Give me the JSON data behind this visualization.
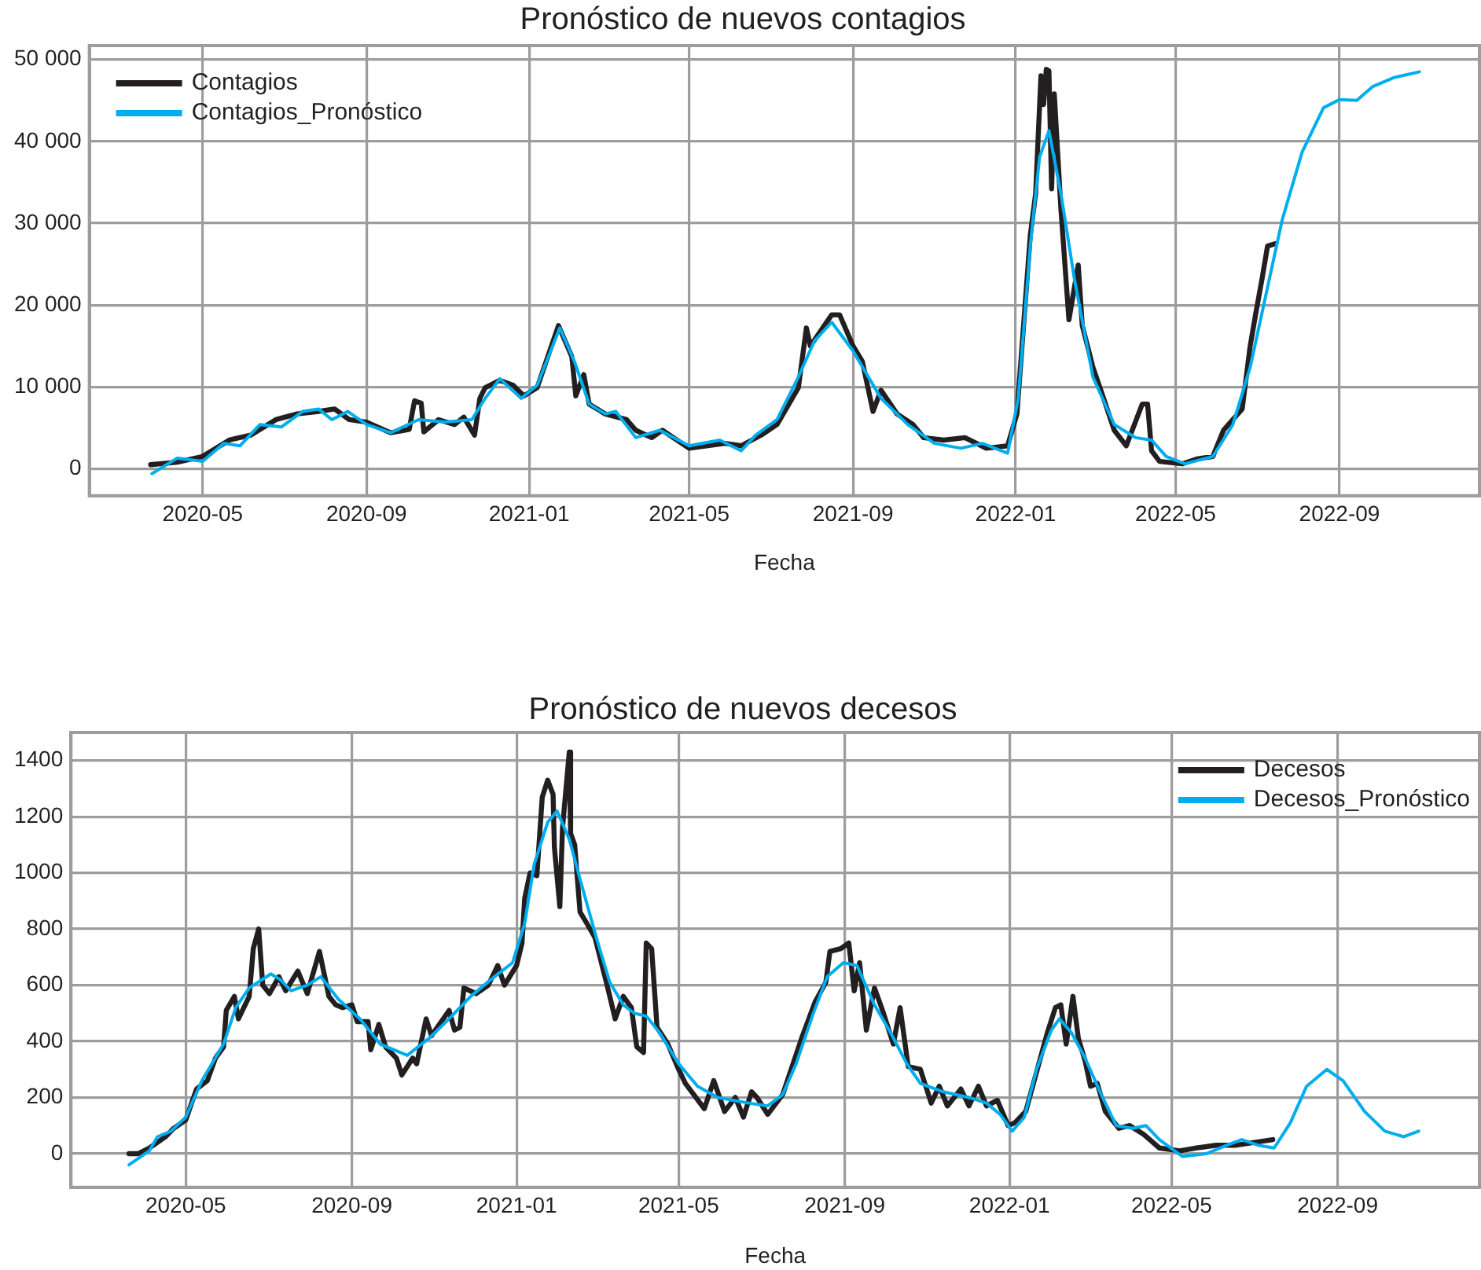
{
  "chart_data": [
    {
      "type": "line",
      "title": "Pronóstico de nuevos contagios",
      "xlabel": "Fecha",
      "xlim": [
        "2020-02-06",
        "2022-12-15"
      ],
      "xticks": [
        "2020-05",
        "2020-09",
        "2021-01",
        "2021-05",
        "2021-09",
        "2022-01",
        "2022-05",
        "2022-09"
      ],
      "ylim": [
        -3300,
        51700
      ],
      "yticks": [
        0,
        {
          "value": 10000,
          "label": "10 000"
        },
        {
          "value": 20000,
          "label": "20 000"
        },
        {
          "value": 30000,
          "label": "30 000"
        },
        {
          "value": 40000,
          "label": "40 000"
        },
        {
          "value": 50000,
          "label": "50 000"
        }
      ],
      "grid": true,
      "legend": "top left",
      "series": [
        {
          "name": "Contagios",
          "color": "#231f20",
          "x": [
            "2020-03-23",
            "2020-04-12",
            "2020-05-01",
            "2020-05-21",
            "2020-06-06",
            "2020-06-25",
            "2020-07-11",
            "2020-07-27",
            "2020-08-08",
            "2020-08-19",
            "2020-09-01",
            "2020-09-19",
            "2020-10-03",
            "2020-10-07",
            "2020-10-12",
            "2020-10-14",
            "2020-10-25",
            "2020-11-06",
            "2020-11-13",
            "2020-11-21",
            "2020-11-25",
            "2020-11-29",
            "2020-12-10",
            "2020-12-20",
            "2020-12-28",
            "2021-01-07",
            "2021-01-23",
            "2021-02-02",
            "2021-02-05",
            "2021-02-11",
            "2021-02-15",
            "2021-02-27",
            "2021-03-15",
            "2021-03-22",
            "2021-04-03",
            "2021-04-11",
            "2021-05-01",
            "2021-05-28",
            "2021-06-09",
            "2021-06-24",
            "2021-07-06",
            "2021-07-22",
            "2021-07-28",
            "2021-07-31",
            "2021-08-16",
            "2021-08-22",
            "2021-09-01",
            "2021-09-08",
            "2021-09-16",
            "2021-09-22",
            "2021-10-04",
            "2021-10-16",
            "2021-10-24",
            "2021-11-08",
            "2021-11-24",
            "2021-12-10",
            "2021-12-26",
            "2022-01-02",
            "2022-01-12",
            "2022-01-16",
            "2022-01-20",
            "2022-01-22",
            "2022-01-24",
            "2022-01-26",
            "2022-01-28",
            "2022-01-30",
            "2022-02-04",
            "2022-02-10",
            "2022-02-17",
            "2022-02-20",
            "2022-02-28",
            "2022-03-08",
            "2022-03-16",
            "2022-03-25",
            "2022-04-06",
            "2022-04-10",
            "2022-04-13",
            "2022-04-19",
            "2022-05-06",
            "2022-05-17",
            "2022-05-29",
            "2022-06-06",
            "2022-06-20",
            "2022-06-26",
            "2022-06-30",
            "2022-07-05",
            "2022-07-09",
            "2022-07-15"
          ],
          "values": [
            500,
            800,
            1500,
            3500,
            4100,
            6000,
            6700,
            7000,
            7300,
            6000,
            5700,
            4400,
            4800,
            8300,
            8000,
            4500,
            6000,
            5400,
            6300,
            4100,
            8600,
            9900,
            10800,
            10200,
            8900,
            9900,
            17500,
            13700,
            8900,
            11500,
            7900,
            6700,
            6000,
            4700,
            3800,
            4700,
            2500,
            3100,
            2800,
            4100,
            5400,
            9900,
            17200,
            15000,
            18800,
            18800,
            15000,
            13100,
            7000,
            9600,
            6700,
            5400,
            3800,
            3500,
            3800,
            2500,
            2800,
            6700,
            28500,
            33600,
            48000,
            44500,
            48800,
            48600,
            34200,
            45800,
            31700,
            18200,
            24900,
            17500,
            12400,
            8600,
            4700,
            2800,
            7900,
            7900,
            2200,
            900,
            600,
            1200,
            1500,
            4700,
            7300,
            15000,
            18800,
            23300,
            27200,
            27500
          ]
        },
        {
          "name": "Contagios_Pronóstico",
          "color": "#00aeef",
          "x": [
            "2020-03-24",
            "2020-04-12",
            "2020-05-01",
            "2020-05-17",
            "2020-05-29",
            "2020-06-13",
            "2020-06-29",
            "2020-07-15",
            "2020-07-27",
            "2020-08-06",
            "2020-08-18",
            "2020-09-01",
            "2020-09-19",
            "2020-10-10",
            "2020-10-30",
            "2020-11-19",
            "2020-11-29",
            "2020-12-10",
            "2020-12-26",
            "2021-01-07",
            "2021-01-24",
            "2021-02-04",
            "2021-02-15",
            "2021-02-27",
            "2021-03-07",
            "2021-03-22",
            "2021-04-09",
            "2021-05-01",
            "2021-05-24",
            "2021-06-09",
            "2021-06-20",
            "2021-07-06",
            "2021-07-22",
            "2021-08-03",
            "2021-08-16",
            "2021-09-01",
            "2021-09-22",
            "2021-10-12",
            "2021-11-01",
            "2021-11-21",
            "2021-12-07",
            "2021-12-26",
            "2022-01-03",
            "2022-01-12",
            "2022-01-19",
            "2022-01-26",
            "2022-02-04",
            "2022-02-14",
            "2022-02-28",
            "2022-03-16",
            "2022-04-01",
            "2022-04-13",
            "2022-04-24",
            "2022-05-08",
            "2022-05-29",
            "2022-06-13",
            "2022-06-26",
            "2022-07-08",
            "2022-07-20",
            "2022-08-04",
            "2022-08-20",
            "2022-09-01",
            "2022-09-14",
            "2022-09-26",
            "2022-10-12",
            "2022-10-31"
          ],
          "values": [
            -600,
            1300,
            900,
            3100,
            2800,
            5400,
            5100,
            7000,
            7300,
            6000,
            7000,
            5400,
            4400,
            6000,
            5700,
            6000,
            8600,
            11000,
            8600,
            10200,
            17200,
            13100,
            7900,
            6700,
            7000,
            3800,
            4700,
            2800,
            3500,
            2200,
            4100,
            6000,
            11200,
            15600,
            17900,
            14400,
            8600,
            5400,
            3100,
            2500,
            3100,
            1900,
            8600,
            27200,
            38100,
            41300,
            33600,
            23300,
            11200,
            5400,
            3800,
            3500,
            1500,
            600,
            1500,
            5400,
            12400,
            21400,
            30400,
            38700,
            44100,
            45100,
            45000,
            46700,
            47800,
            48500
          ]
        }
      ]
    },
    {
      "type": "line",
      "title": "Pronóstico de nuevos decesos",
      "xlabel": "Fecha",
      "xlim": [
        "2020-02-06",
        "2022-12-15"
      ],
      "xticks": [
        "2020-05",
        "2020-09",
        "2021-01",
        "2021-05",
        "2021-09",
        "2022-01",
        "2022-05",
        "2022-09"
      ],
      "ylim": [
        -120,
        1500
      ],
      "yticks": [
        0,
        200,
        400,
        600,
        800,
        1000,
        1200,
        1400
      ],
      "grid": true,
      "legend": "top right",
      "series": [
        {
          "name": "Decesos",
          "color": "#231f20",
          "x": [
            "2020-03-20",
            "2020-03-27",
            "2020-04-04",
            "2020-04-16",
            "2020-04-22",
            "2020-05-01",
            "2020-05-09",
            "2020-05-17",
            "2020-05-23",
            "2020-05-29",
            "2020-05-31",
            "2020-06-06",
            "2020-06-09",
            "2020-06-17",
            "2020-06-20",
            "2020-06-24",
            "2020-06-27",
            "2020-07-02",
            "2020-07-09",
            "2020-07-14",
            "2020-07-23",
            "2020-07-30",
            "2020-08-08",
            "2020-08-15",
            "2020-08-20",
            "2020-08-25",
            "2020-09-01",
            "2020-09-05",
            "2020-09-13",
            "2020-09-15",
            "2020-09-21",
            "2020-09-26",
            "2020-10-04",
            "2020-10-08",
            "2020-10-16",
            "2020-10-19",
            "2020-10-26",
            "2020-10-30",
            "2020-11-12",
            "2020-11-16",
            "2020-11-20",
            "2020-11-23",
            "2020-12-02",
            "2020-12-11",
            "2020-12-18",
            "2020-12-23",
            "2021-01-01",
            "2021-01-05",
            "2021-01-07",
            "2021-01-11",
            "2021-01-16",
            "2021-01-20",
            "2021-01-24",
            "2021-01-28",
            "2021-01-29",
            "2021-02-02",
            "2021-02-04",
            "2021-02-09",
            "2021-02-10",
            "2021-02-13",
            "2021-02-17",
            "2021-02-22",
            "2021-02-28",
            "2021-03-09",
            "2021-03-15",
            "2021-03-21",
            "2021-03-27",
            "2021-03-31",
            "2021-04-05",
            "2021-04-07",
            "2021-04-11",
            "2021-04-15",
            "2021-04-23",
            "2021-05-01",
            "2021-05-06",
            "2021-05-20",
            "2021-05-27",
            "2021-06-04",
            "2021-06-12",
            "2021-06-18",
            "2021-06-24",
            "2021-06-28",
            "2021-07-06",
            "2021-07-17",
            "2021-07-31",
            "2021-08-10",
            "2021-08-18",
            "2021-08-21",
            "2021-08-29",
            "2021-09-04",
            "2021-09-08",
            "2021-09-12",
            "2021-09-17",
            "2021-09-23",
            "2021-09-29",
            "2021-10-07",
            "2021-10-12",
            "2021-10-18",
            "2021-10-27",
            "2021-11-04",
            "2021-11-10",
            "2021-11-16",
            "2021-11-26",
            "2021-12-02",
            "2021-12-09",
            "2021-12-15",
            "2021-12-23",
            "2021-12-31",
            "2022-01-05",
            "2022-01-13",
            "2022-01-21",
            "2022-01-29",
            "2022-02-04",
            "2022-02-08",
            "2022-02-12",
            "2022-02-17",
            "2022-02-21",
            "2022-02-26",
            "2022-03-02",
            "2022-03-07",
            "2022-03-13",
            "2022-03-23",
            "2022-03-31",
            "2022-04-10",
            "2022-04-22",
            "2022-05-07",
            "2022-05-19",
            "2022-06-03",
            "2022-06-18",
            "2022-07-15"
          ],
          "values": [
            0,
            0,
            20,
            60,
            90,
            120,
            230,
            260,
            340,
            380,
            510,
            560,
            480,
            560,
            730,
            800,
            600,
            570,
            630,
            580,
            650,
            570,
            720,
            560,
            530,
            520,
            530,
            470,
            470,
            370,
            460,
            380,
            340,
            280,
            340,
            320,
            480,
            420,
            510,
            440,
            450,
            590,
            570,
            600,
            670,
            600,
            670,
            750,
            910,
            1000,
            990,
            1270,
            1330,
            1280,
            1090,
            880,
            1160,
            1430,
            1140,
            1100,
            860,
            820,
            770,
            600,
            480,
            560,
            520,
            380,
            360,
            750,
            730,
            450,
            390,
            300,
            250,
            160,
            260,
            150,
            200,
            130,
            220,
            200,
            140,
            210,
            410,
            540,
            610,
            720,
            730,
            750,
            580,
            680,
            440,
            590,
            510,
            390,
            520,
            310,
            300,
            180,
            240,
            170,
            230,
            170,
            240,
            170,
            190,
            100,
            110,
            150,
            290,
            430,
            520,
            530,
            390,
            560,
            410,
            330,
            240,
            250,
            150,
            90,
            100,
            70,
            20,
            10,
            20,
            30,
            30,
            50
          ]
        },
        {
          "name": "Decesos_Pronóstico",
          "color": "#00aeef",
          "x": [
            "2020-03-20",
            "2020-04-04",
            "2020-04-10",
            "2020-04-20",
            "2020-05-01",
            "2020-05-13",
            "2020-05-29",
            "2020-06-07",
            "2020-06-17",
            "2020-07-03",
            "2020-07-10",
            "2020-07-18",
            "2020-07-30",
            "2020-08-09",
            "2020-08-22",
            "2020-09-07",
            "2020-09-22",
            "2020-10-12",
            "2020-10-28",
            "2020-11-12",
            "2020-11-28",
            "2020-12-13",
            "2020-12-29",
            "2021-01-07",
            "2021-01-14",
            "2021-01-24",
            "2021-01-31",
            "2021-02-09",
            "2021-02-18",
            "2021-03-01",
            "2021-03-11",
            "2021-03-21",
            "2021-03-29",
            "2021-04-07",
            "2021-04-17",
            "2021-05-01",
            "2021-05-15",
            "2021-05-30",
            "2021-06-22",
            "2021-07-06",
            "2021-07-17",
            "2021-07-27",
            "2021-08-08",
            "2021-08-19",
            "2021-08-31",
            "2021-09-10",
            "2021-09-23",
            "2021-10-05",
            "2021-10-17",
            "2021-10-27",
            "2021-11-13",
            "2021-12-02",
            "2021-12-15",
            "2021-12-25",
            "2022-01-03",
            "2022-01-12",
            "2022-01-21",
            "2022-02-01",
            "2022-02-07",
            "2022-02-16",
            "2022-02-26",
            "2022-03-10",
            "2022-03-21",
            "2022-04-02",
            "2022-04-12",
            "2022-04-22",
            "2022-05-09",
            "2022-05-27",
            "2022-06-11",
            "2022-06-22",
            "2022-07-04",
            "2022-07-16",
            "2022-07-28",
            "2022-08-09",
            "2022-08-24",
            "2022-09-05",
            "2022-09-21",
            "2022-10-06",
            "2022-10-20",
            "2022-10-31"
          ],
          "values": [
            -40,
            10,
            60,
            80,
            130,
            260,
            390,
            520,
            590,
            640,
            620,
            580,
            600,
            630,
            550,
            480,
            390,
            350,
            410,
            480,
            560,
            620,
            680,
            820,
            1030,
            1180,
            1220,
            1120,
            960,
            770,
            610,
            530,
            500,
            490,
            430,
            320,
            240,
            200,
            180,
            170,
            210,
            320,
            490,
            630,
            680,
            670,
            530,
            430,
            320,
            250,
            220,
            200,
            180,
            140,
            80,
            130,
            300,
            440,
            480,
            430,
            340,
            210,
            100,
            90,
            100,
            50,
            -10,
            0,
            30,
            50,
            30,
            20,
            110,
            240,
            300,
            260,
            150,
            80,
            60,
            80
          ]
        }
      ]
    }
  ]
}
